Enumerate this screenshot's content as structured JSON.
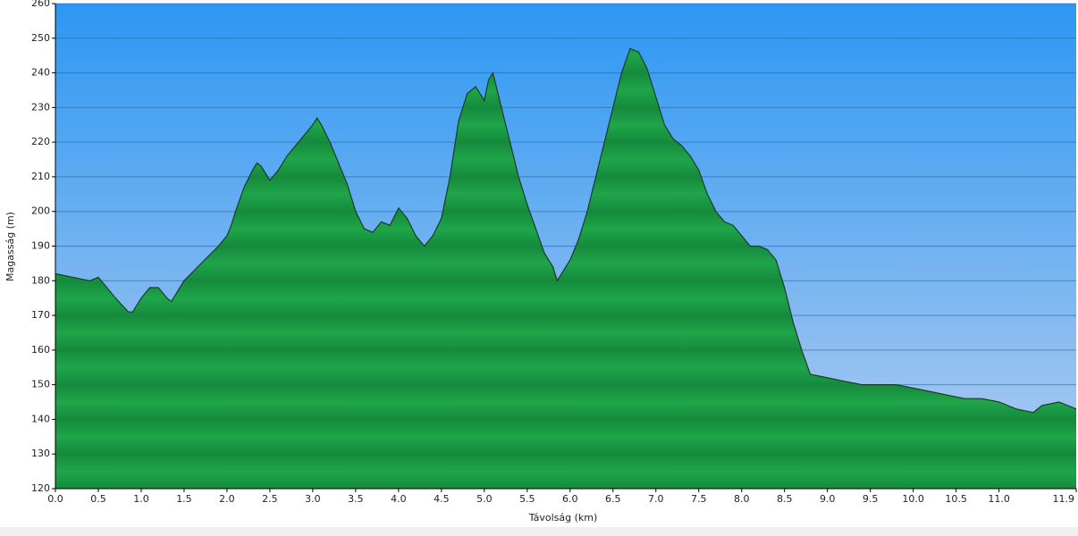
{
  "chart_data": {
    "type": "area",
    "xlabel": "Távolság   (km)",
    "ylabel": "Magasság (m)",
    "x": [
      0.0,
      0.2,
      0.4,
      0.5,
      0.6,
      0.7,
      0.85,
      0.9,
      1.0,
      1.1,
      1.2,
      1.3,
      1.35,
      1.4,
      1.5,
      1.7,
      1.9,
      2.0,
      2.05,
      2.1,
      2.2,
      2.3,
      2.35,
      2.4,
      2.5,
      2.6,
      2.7,
      2.8,
      2.9,
      3.0,
      3.05,
      3.1,
      3.2,
      3.3,
      3.4,
      3.5,
      3.6,
      3.7,
      3.8,
      3.9,
      4.0,
      4.1,
      4.2,
      4.3,
      4.4,
      4.5,
      4.6,
      4.7,
      4.8,
      4.9,
      5.0,
      5.05,
      5.1,
      5.2,
      5.3,
      5.4,
      5.5,
      5.6,
      5.7,
      5.8,
      5.85,
      5.9,
      6.0,
      6.1,
      6.2,
      6.3,
      6.4,
      6.5,
      6.6,
      6.7,
      6.8,
      6.9,
      7.0,
      7.1,
      7.2,
      7.3,
      7.4,
      7.5,
      7.6,
      7.7,
      7.8,
      7.9,
      8.0,
      8.1,
      8.2,
      8.3,
      8.4,
      8.5,
      8.6,
      8.7,
      8.8,
      9.0,
      9.2,
      9.4,
      9.6,
      9.8,
      10.0,
      10.2,
      10.4,
      10.6,
      10.8,
      11.0,
      11.2,
      11.4,
      11.5,
      11.7,
      11.9
    ],
    "values": [
      182,
      181,
      180,
      181,
      178,
      175,
      171,
      171,
      175,
      178,
      178,
      175,
      174,
      176,
      180,
      185,
      190,
      193,
      196,
      200,
      207,
      212,
      214,
      213,
      209,
      212,
      216,
      219,
      222,
      225,
      227,
      225,
      220,
      214,
      208,
      200,
      195,
      194,
      197,
      196,
      201,
      198,
      193,
      190,
      193,
      198,
      210,
      226,
      234,
      236,
      232,
      238,
      240,
      230,
      220,
      210,
      202,
      195,
      188,
      184,
      180,
      182,
      186,
      192,
      200,
      210,
      220,
      230,
      240,
      247,
      246,
      241,
      233,
      225,
      221,
      219,
      216,
      212,
      205,
      200,
      197,
      196,
      193,
      190,
      190,
      189,
      186,
      178,
      168,
      160,
      153,
      152,
      151,
      150,
      150,
      150,
      149,
      148,
      147,
      146,
      146,
      145,
      143,
      142,
      144,
      145,
      143
    ],
    "color": "#1fa54a",
    "xlim": [
      0,
      11.9
    ],
    "ylim": [
      120,
      260
    ],
    "xticks": [
      {
        "value": 0,
        "label": "0.0"
      },
      0.5,
      {
        "value": 1,
        "label": "1.0"
      },
      1.5,
      {
        "value": 2,
        "label": "2.0"
      },
      2.5,
      {
        "value": 3,
        "label": "3.0"
      },
      3.5,
      {
        "value": 4,
        "label": "4.0"
      },
      4.5,
      {
        "value": 5,
        "label": "5.0"
      },
      5.5,
      {
        "value": 6,
        "label": "6.0"
      },
      6.5,
      {
        "value": 7,
        "label": "7.0"
      },
      7.5,
      {
        "value": 8,
        "label": "8.0"
      },
      8.5,
      {
        "value": 9,
        "label": "9.0"
      },
      9.5,
      {
        "value": 10,
        "label": "10.0"
      },
      10.5,
      {
        "value": 11,
        "label": "11.0"
      },
      11.9
    ],
    "yticks": [
      120,
      130,
      140,
      150,
      160,
      170,
      180,
      190,
      200,
      210,
      220,
      230,
      240,
      250,
      260
    ],
    "grid": true
  }
}
